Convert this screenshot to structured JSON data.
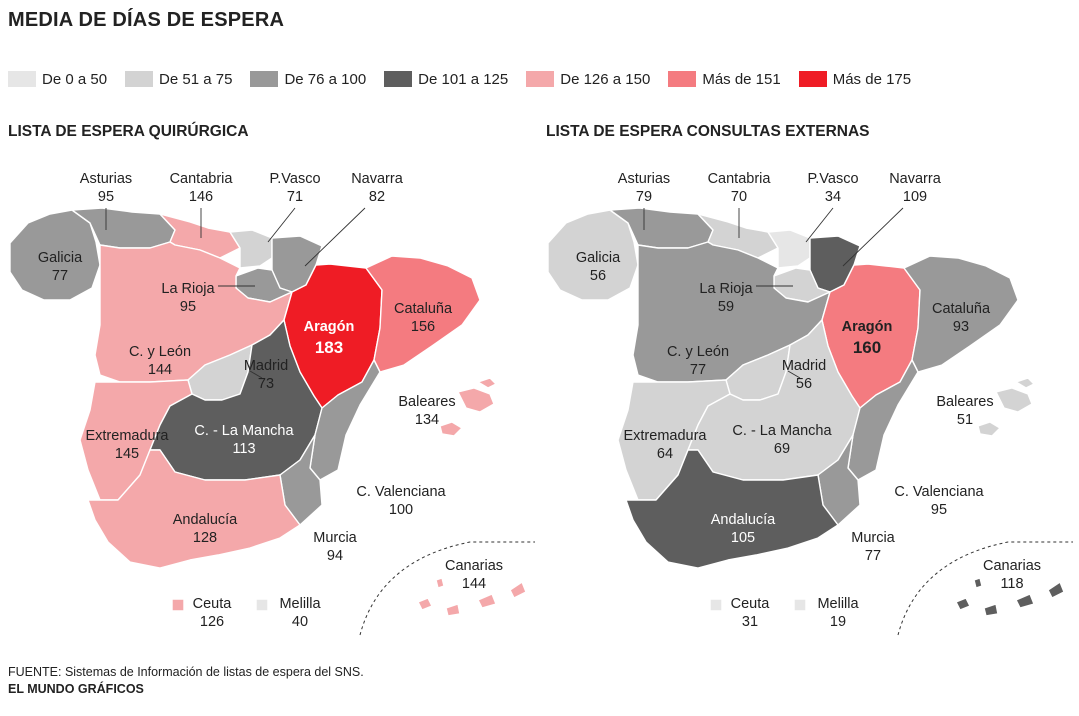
{
  "title": "MEDIA DE DÍAS DE ESPERA",
  "legend": [
    {
      "label": "De 0 a 50",
      "color": "#e6e6e6"
    },
    {
      "label": "De 51 a 75",
      "color": "#d3d3d3"
    },
    {
      "label": "De 76 a 100",
      "color": "#999999"
    },
    {
      "label": "De 101 a 125",
      "color": "#5e5e5e"
    },
    {
      "label": "De 126 a 150",
      "color": "#f4a8aa"
    },
    {
      "label": "Más de 151",
      "color": "#f47b80"
    },
    {
      "label": "Más de 175",
      "color": "#ef1c25"
    }
  ],
  "panels": {
    "left": {
      "title": "LISTA DE ESPERA QUIRÚRGICA",
      "regions": {
        "galicia": {
          "name": "Galicia",
          "value": "77",
          "color": "#999999"
        },
        "asturias": {
          "name": "Asturias",
          "value": "95",
          "color": "#999999"
        },
        "cantabria": {
          "name": "Cantabria",
          "value": "146",
          "color": "#f4a8aa"
        },
        "pvasco": {
          "name": "P.Vasco",
          "value": "71",
          "color": "#d3d3d3"
        },
        "navarra": {
          "name": "Navarra",
          "value": "82",
          "color": "#999999"
        },
        "larioja": {
          "name": "La Rioja",
          "value": "95",
          "color": "#999999"
        },
        "aragon": {
          "name": "Aragón",
          "value": "183",
          "color": "#ef1c25"
        },
        "cataluna": {
          "name": "Cataluña",
          "value": "156",
          "color": "#f47b80"
        },
        "cyleon": {
          "name": "C. y León",
          "value": "144",
          "color": "#f4a8aa"
        },
        "madrid": {
          "name": "Madrid",
          "value": "73",
          "color": "#d3d3d3"
        },
        "extremadura": {
          "name": "Extremadura",
          "value": "145",
          "color": "#f4a8aa"
        },
        "clamancha": {
          "name": "C. - La Mancha",
          "value": "113",
          "color": "#5e5e5e"
        },
        "valenciana": {
          "name": "C. Valenciana",
          "value": "100",
          "color": "#999999"
        },
        "murcia": {
          "name": "Murcia",
          "value": "94",
          "color": "#999999"
        },
        "andalucia": {
          "name": "Andalucía",
          "value": "128",
          "color": "#f4a8aa"
        },
        "baleares": {
          "name": "Baleares",
          "value": "134",
          "color": "#f4a8aa"
        },
        "canarias": {
          "name": "Canarias",
          "value": "144",
          "color": "#f4a8aa"
        },
        "ceuta": {
          "name": "Ceuta",
          "value": "126",
          "color": "#f4a8aa"
        },
        "melilla": {
          "name": "Melilla",
          "value": "40",
          "color": "#e6e6e6"
        }
      }
    },
    "right": {
      "title": "LISTA DE ESPERA CONSULTAS EXTERNAS",
      "regions": {
        "galicia": {
          "name": "Galicia",
          "value": "56",
          "color": "#d3d3d3"
        },
        "asturias": {
          "name": "Asturias",
          "value": "79",
          "color": "#999999"
        },
        "cantabria": {
          "name": "Cantabria",
          "value": "70",
          "color": "#d3d3d3"
        },
        "pvasco": {
          "name": "P.Vasco",
          "value": "34",
          "color": "#e6e6e6"
        },
        "navarra": {
          "name": "Navarra",
          "value": "109",
          "color": "#5e5e5e"
        },
        "larioja": {
          "name": "La Rioja",
          "value": "59",
          "color": "#d3d3d3"
        },
        "aragon": {
          "name": "Aragón",
          "value": "160",
          "color": "#f47b80"
        },
        "cataluna": {
          "name": "Cataluña",
          "value": "93",
          "color": "#999999"
        },
        "cyleon": {
          "name": "C. y León",
          "value": "77",
          "color": "#999999"
        },
        "madrid": {
          "name": "Madrid",
          "value": "56",
          "color": "#d3d3d3"
        },
        "extremadura": {
          "name": "Extremadura",
          "value": "64",
          "color": "#d3d3d3"
        },
        "clamancha": {
          "name": "C. - La Mancha",
          "value": "69",
          "color": "#d3d3d3"
        },
        "valenciana": {
          "name": "C. Valenciana",
          "value": "95",
          "color": "#999999"
        },
        "murcia": {
          "name": "Murcia",
          "value": "77",
          "color": "#999999"
        },
        "andalucia": {
          "name": "Andalucía",
          "value": "105",
          "color": "#5e5e5e"
        },
        "baleares": {
          "name": "Baleares",
          "value": "51",
          "color": "#d3d3d3"
        },
        "canarias": {
          "name": "Canarias",
          "value": "118",
          "color": "#5e5e5e"
        },
        "ceuta": {
          "name": "Ceuta",
          "value": "31",
          "color": "#e6e6e6"
        },
        "melilla": {
          "name": "Melilla",
          "value": "19",
          "color": "#e6e6e6"
        }
      }
    }
  },
  "source": "FUENTE: Sistemas de Información de listas de espera del SNS.",
  "brand": "EL MUNDO GRÁFICOS"
}
